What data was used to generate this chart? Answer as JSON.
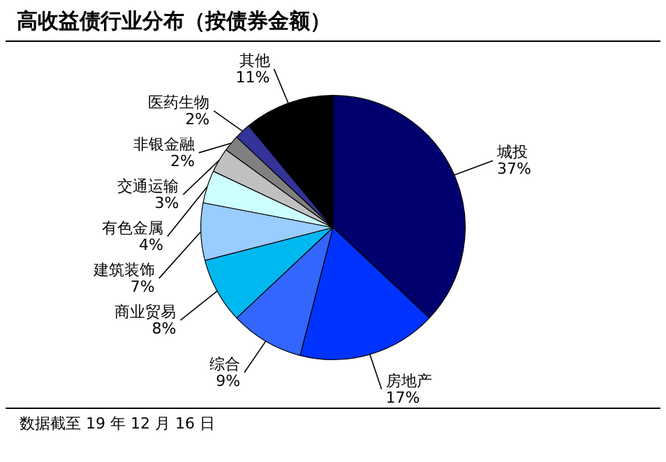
{
  "chart_data": {
    "type": "pie",
    "title": "高收益债行业分布（按债券金额）",
    "categories": [
      "城投",
      "房地产",
      "综合",
      "商业贸易",
      "建筑装饰",
      "有色金属",
      "交通运输",
      "非银金融",
      "医药生物",
      "其他"
    ],
    "values": [
      37,
      17,
      9,
      8,
      7,
      4,
      3,
      2,
      2,
      11
    ],
    "value_labels": [
      "37%",
      "17%",
      "9%",
      "8%",
      "7%",
      "4%",
      "3%",
      "2%",
      "2%",
      "11%"
    ],
    "colors": [
      "#00006e",
      "#0033ff",
      "#3366ff",
      "#00b8f0",
      "#99ccff",
      "#ccffff",
      "#c0c0c0",
      "#808080",
      "#333399",
      "#000000"
    ],
    "legend": false,
    "annotations": [
      "数据截至 19 年 12 月 16 日"
    ]
  }
}
